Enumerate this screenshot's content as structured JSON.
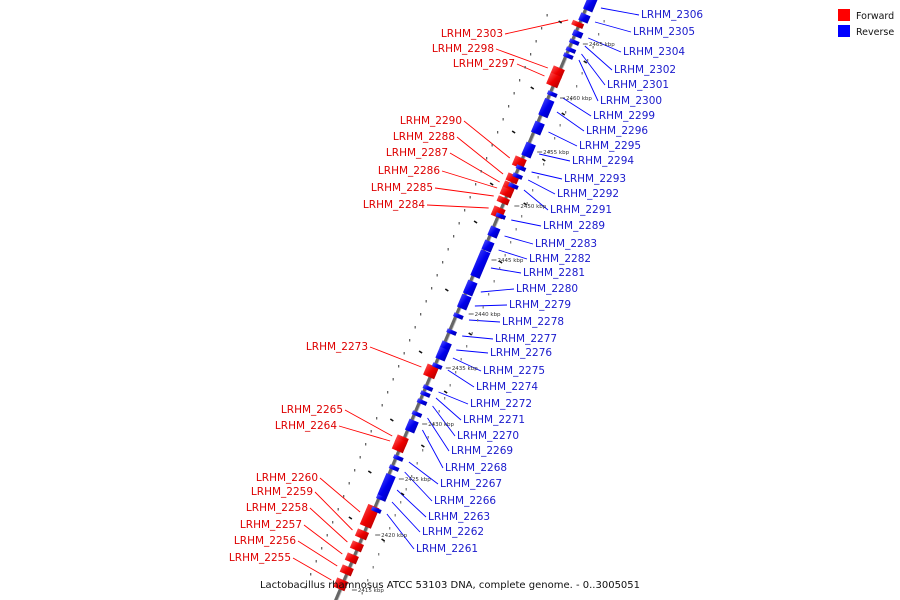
{
  "caption": "Lactobacillus rhamnosus ATCC 53103 DNA, complete genome. - 0..3005051",
  "legend": [
    {
      "label": "Forward",
      "color": "#ff0000"
    },
    {
      "label": "Reverse",
      "color": "#0000ff"
    }
  ],
  "ticks": [
    "2465 kbp",
    "2460 kbp",
    "2455 kbp",
    "2450 kbp",
    "2445 kbp",
    "2440 kbp",
    "2435 kbp",
    "2430 kbp",
    "2425 kbp",
    "2420 kbp",
    "2415 kbp"
  ],
  "forward_genes": [
    "LRHM_2303",
    "LRHM_2298",
    "LRHM_2297",
    "LRHM_2290",
    "LRHM_2288",
    "LRHM_2287",
    "LRHM_2286",
    "LRHM_2285",
    "LRHM_2284",
    "LRHM_2273",
    "LRHM_2265",
    "LRHM_2264",
    "LRHM_2260",
    "LRHM_2259",
    "LRHM_2258",
    "LRHM_2257",
    "LRHM_2256",
    "LRHM_2255"
  ],
  "reverse_genes": [
    "LRHM_2306",
    "LRHM_2305",
    "LRHM_2304",
    "LRHM_2302",
    "LRHM_2301",
    "LRHM_2300",
    "LRHM_2299",
    "LRHM_2296",
    "LRHM_2295",
    "LRHM_2294",
    "LRHM_2293",
    "LRHM_2292",
    "LRHM_2291",
    "LRHM_2289",
    "LRHM_2283",
    "LRHM_2282",
    "LRHM_2281",
    "LRHM_2280",
    "LRHM_2279",
    "LRHM_2278",
    "LRHM_2277",
    "LRHM_2276",
    "LRHM_2275",
    "LRHM_2274",
    "LRHM_2272",
    "LRHM_2271",
    "LRHM_2270",
    "LRHM_2269",
    "LRHM_2268",
    "LRHM_2267",
    "LRHM_2266",
    "LRHM_2263",
    "LRHM_2262",
    "LRHM_2261"
  ]
}
